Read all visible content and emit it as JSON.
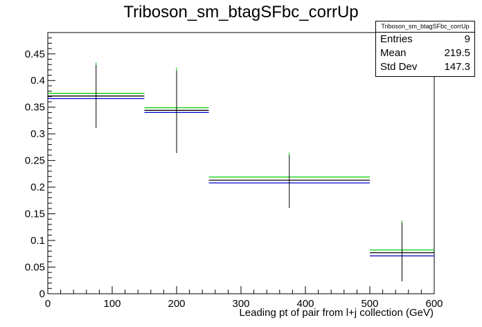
{
  "chart_data": {
    "type": "histogram-errorbars",
    "title": "Triboson_sm_btagSFbc_corrUp",
    "xlabel": "Leading pt of pair from l+j collection (GeV)",
    "ylabel": "",
    "xlim": [
      0,
      600
    ],
    "ylim": [
      0,
      0.49
    ],
    "x_ticks": [
      "0",
      "100",
      "200",
      "300",
      "400",
      "500",
      "600"
    ],
    "y_ticks": [
      "0",
      "0.05",
      "0.1",
      "0.15",
      "0.2",
      "0.25",
      "0.3",
      "0.35",
      "0.4",
      "0.45"
    ],
    "grid": false,
    "bins": [
      {
        "xlow": 0,
        "xhigh": 150,
        "center": 75,
        "black": 0.371,
        "green": 0.376,
        "blue": 0.366,
        "err_low": 0.311,
        "err_high": 0.434
      },
      {
        "xlow": 150,
        "xhigh": 250,
        "center": 200,
        "black": 0.344,
        "green": 0.349,
        "blue": 0.34,
        "err_low": 0.264,
        "err_high": 0.424
      },
      {
        "xlow": 250,
        "xhigh": 500,
        "center": 375,
        "black": 0.213,
        "green": 0.219,
        "blue": 0.208,
        "err_low": 0.161,
        "err_high": 0.265
      },
      {
        "xlow": 500,
        "xhigh": 600,
        "center": 550,
        "black": 0.077,
        "green": 0.082,
        "blue": 0.071,
        "err_low": 0.023,
        "err_high": 0.138
      }
    ],
    "colors": {
      "nominal": "#000000",
      "up": "#00cc00",
      "down": "#0000cc"
    }
  },
  "stats_box": {
    "title": "Triboson_sm_btagSFbc_corrUp",
    "rows": [
      {
        "label": "Entries",
        "value": "9"
      },
      {
        "label": "Mean",
        "value": "219.5"
      },
      {
        "label": "Std Dev",
        "value": "147.3"
      }
    ]
  }
}
